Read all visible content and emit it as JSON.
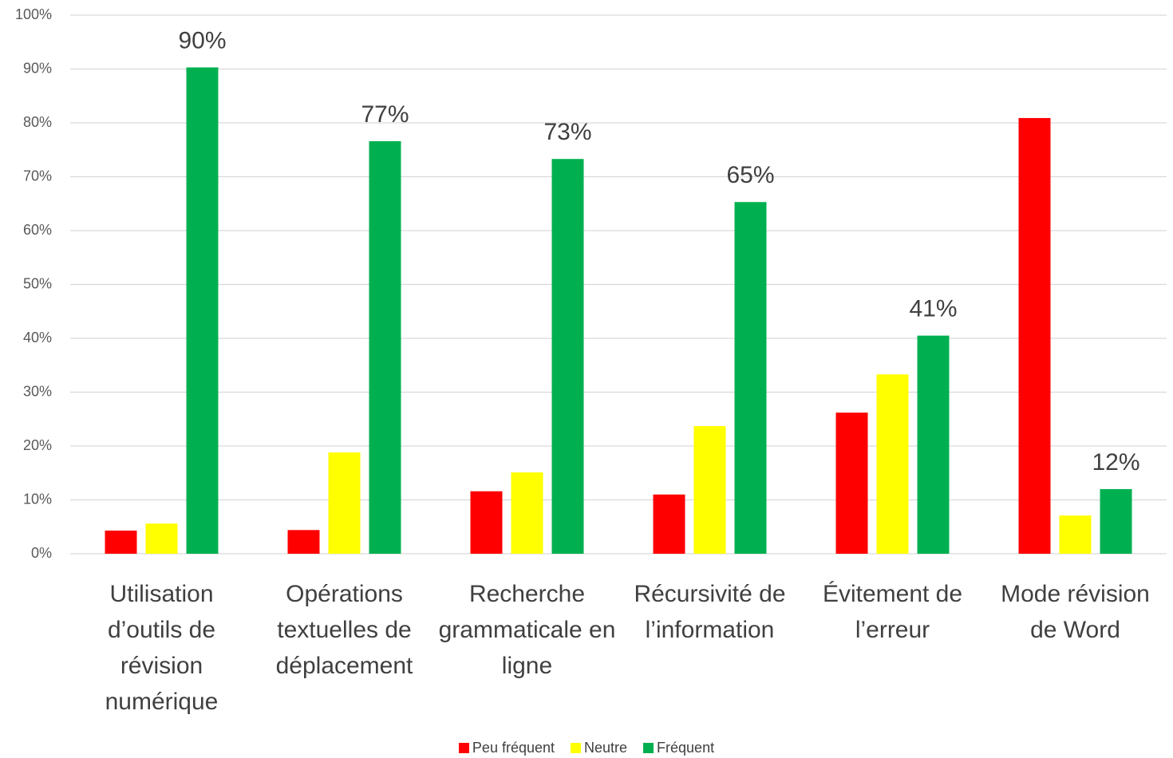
{
  "chart_data": {
    "type": "bar",
    "categories": [
      "Utilisation d’outils de révision numérique",
      "Opérations textuelles de déplacement",
      "Recherche grammaticale en ligne",
      "Récursivité de l’information",
      "Évitement de l’erreur",
      "Mode révision de Word"
    ],
    "series": [
      {
        "name": "Peu fréquent",
        "color": "#ff0000",
        "values": [
          4.3,
          4.4,
          11.6,
          11.0,
          26.2,
          80.9
        ]
      },
      {
        "name": "Neutre",
        "color": "#ffff00",
        "values": [
          5.6,
          18.8,
          15.1,
          23.7,
          33.3,
          7.1
        ]
      },
      {
        "name": "Fréquent",
        "color": "#00b050",
        "values": [
          90.3,
          76.6,
          73.3,
          65.3,
          40.5,
          12.0
        ],
        "value_labels": [
          "90%",
          "77%",
          "73%",
          "65%",
          "41%",
          "12%"
        ]
      }
    ],
    "ylim": [
      0,
      100
    ],
    "yticks": [
      {
        "value": 0,
        "label": "0%"
      },
      {
        "value": 10,
        "label": "10%"
      },
      {
        "value": 20,
        "label": "20%"
      },
      {
        "value": 30,
        "label": "30%"
      },
      {
        "value": 40,
        "label": "40%"
      },
      {
        "value": 50,
        "label": "50%"
      },
      {
        "value": 60,
        "label": "60%"
      },
      {
        "value": 70,
        "label": "70%"
      },
      {
        "value": 80,
        "label": "80%"
      },
      {
        "value": 90,
        "label": "90%"
      },
      {
        "value": 100,
        "label": "100%"
      }
    ],
    "grid": true,
    "legend": "bottom"
  }
}
